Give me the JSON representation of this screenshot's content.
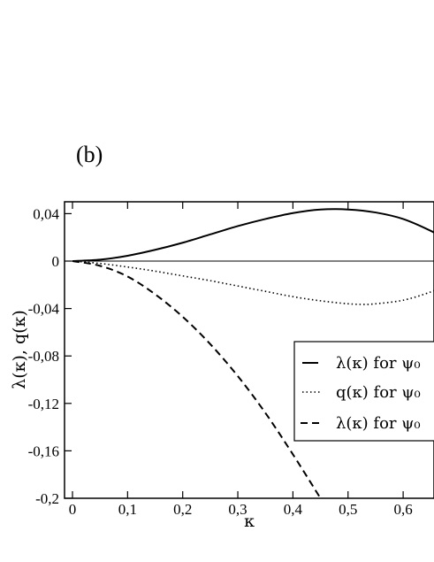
{
  "panel_label": "(b)",
  "chart_data": {
    "type": "line",
    "title": "",
    "xlabel": "κ",
    "ylabel": "λ(κ), q(κ)",
    "xlim": [
      0,
      0.68
    ],
    "ylim": [
      -0.2,
      0.05
    ],
    "xticks": [
      0,
      0.1,
      0.2,
      0.3,
      0.4,
      0.5,
      0.6
    ],
    "xtick_labels": [
      "0",
      "0,1",
      "0,2",
      "0,3",
      "0,4",
      "0,5",
      "0,6"
    ],
    "yticks": [
      0.04,
      0,
      -0.04,
      -0.08,
      -0.12,
      -0.16,
      -0.2
    ],
    "ytick_labels": [
      "0,04",
      "0",
      "-0,04",
      "-0,08",
      "-0,12",
      "-0,16",
      "-0,2"
    ],
    "grid": false,
    "zero_line": true,
    "legend": {
      "placement": "right",
      "entries": [
        "λ(κ) for  ψ₀",
        "q(κ)  for  ψ₀",
        "λ(κ) for  ψ₀"
      ]
    },
    "series": [
      {
        "style": "solid",
        "x": [
          0,
          0.05,
          0.1,
          0.15,
          0.2,
          0.25,
          0.3,
          0.35,
          0.4,
          0.45,
          0.5,
          0.55,
          0.6,
          0.65,
          0.68
        ],
        "y": [
          0,
          0.0012,
          0.0045,
          0.0095,
          0.0155,
          0.0225,
          0.0295,
          0.0355,
          0.0405,
          0.0435,
          0.0435,
          0.041,
          0.0355,
          0.0255,
          0.0175
        ]
      },
      {
        "style": "dotted",
        "x": [
          0,
          0.05,
          0.1,
          0.15,
          0.2,
          0.25,
          0.3,
          0.35,
          0.4,
          0.45,
          0.5,
          0.53,
          0.55,
          0.6,
          0.65,
          0.68
        ],
        "y": [
          0,
          -0.002,
          -0.005,
          -0.0085,
          -0.0125,
          -0.0165,
          -0.021,
          -0.0255,
          -0.03,
          -0.0335,
          -0.036,
          -0.0365,
          -0.036,
          -0.033,
          -0.026,
          -0.019
        ]
      },
      {
        "style": "dashed",
        "x": [
          0,
          0.05,
          0.1,
          0.15,
          0.2,
          0.25,
          0.3,
          0.35,
          0.4,
          0.45
        ],
        "y": [
          0,
          -0.004,
          -0.013,
          -0.028,
          -0.047,
          -0.07,
          -0.097,
          -0.128,
          -0.163,
          -0.2
        ]
      }
    ]
  }
}
